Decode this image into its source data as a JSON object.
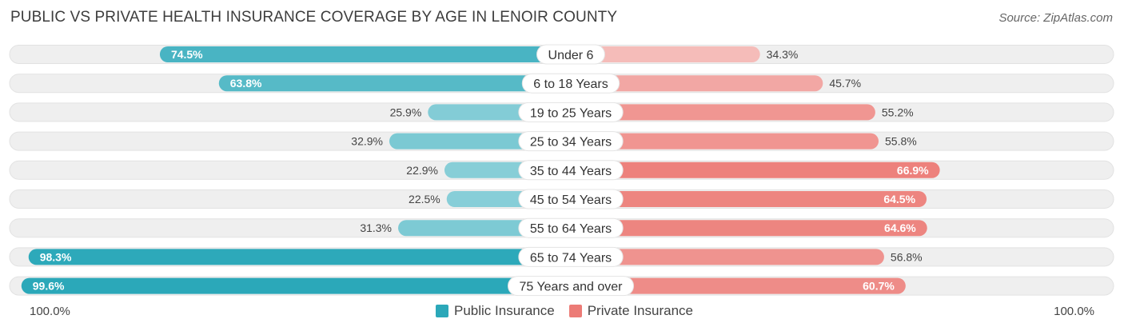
{
  "title": "PUBLIC VS PRIVATE HEALTH INSURANCE COVERAGE BY AGE IN LENOIR COUNTY",
  "source": "Source: ZipAtlas.com",
  "axis": {
    "left_label": "100.0%",
    "right_label": "100.0%"
  },
  "colors": {
    "public": "#2ba8b9",
    "private": "#ec7b76",
    "track": "#efefef"
  },
  "chart_data": {
    "type": "bar",
    "orientation": "horizontal-diverging",
    "title": "PUBLIC VS PRIVATE HEALTH INSURANCE COVERAGE BY AGE IN LENOIR COUNTY",
    "categories": [
      "Under 6",
      "6 to 18 Years",
      "19 to 25 Years",
      "25 to 34 Years",
      "35 to 44 Years",
      "45 to 54 Years",
      "55 to 64 Years",
      "65 to 74 Years",
      "75 Years and over"
    ],
    "series": [
      {
        "name": "Public Insurance",
        "values": [
          74.5,
          63.8,
          25.9,
          32.9,
          22.9,
          22.5,
          31.3,
          98.3,
          99.6
        ],
        "labels": [
          "74.5%",
          "63.8%",
          "25.9%",
          "32.9%",
          "22.9%",
          "22.5%",
          "31.3%",
          "98.3%",
          "99.6%"
        ]
      },
      {
        "name": "Private Insurance",
        "values": [
          34.3,
          45.7,
          55.2,
          55.8,
          66.9,
          64.5,
          64.6,
          56.8,
          60.7
        ],
        "labels": [
          "34.3%",
          "45.7%",
          "55.2%",
          "55.8%",
          "66.9%",
          "64.5%",
          "64.6%",
          "56.8%",
          "60.7%"
        ]
      }
    ],
    "xlim": [
      -100,
      100
    ],
    "legend_position": "bottom-center"
  }
}
